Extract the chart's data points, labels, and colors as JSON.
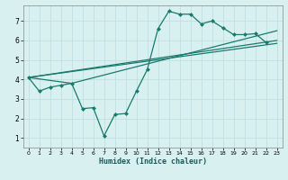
{
  "title": "",
  "xlabel": "Humidex (Indice chaleur)",
  "bg_color": "#d9f0f0",
  "grid_color": "#c0e0e0",
  "line_color": "#1a7a6e",
  "xlim": [
    -0.5,
    23.5
  ],
  "ylim": [
    0.5,
    7.8
  ],
  "xticks": [
    0,
    1,
    2,
    3,
    4,
    5,
    6,
    7,
    8,
    9,
    10,
    11,
    12,
    13,
    14,
    15,
    16,
    17,
    18,
    19,
    20,
    21,
    22,
    23
  ],
  "yticks": [
    1,
    2,
    3,
    4,
    5,
    6,
    7
  ],
  "line1_x": [
    0,
    1,
    2,
    3,
    4,
    5,
    6,
    7,
    8,
    9,
    10,
    11,
    12,
    13,
    14,
    15,
    16,
    17,
    18,
    19,
    20,
    21,
    22
  ],
  "line1_y": [
    4.1,
    3.4,
    3.6,
    3.7,
    3.8,
    2.5,
    2.55,
    1.1,
    2.2,
    2.25,
    3.4,
    4.5,
    6.6,
    7.5,
    7.35,
    7.35,
    6.85,
    7.0,
    6.65,
    6.3,
    6.3,
    6.35,
    5.9
  ],
  "line2_x": [
    0,
    4,
    23
  ],
  "line2_y": [
    4.1,
    3.8,
    6.5
  ],
  "line3_x": [
    0,
    23
  ],
  "line3_y": [
    4.1,
    6.0
  ],
  "line4_x": [
    0,
    23
  ],
  "line4_y": [
    4.1,
    5.85
  ]
}
